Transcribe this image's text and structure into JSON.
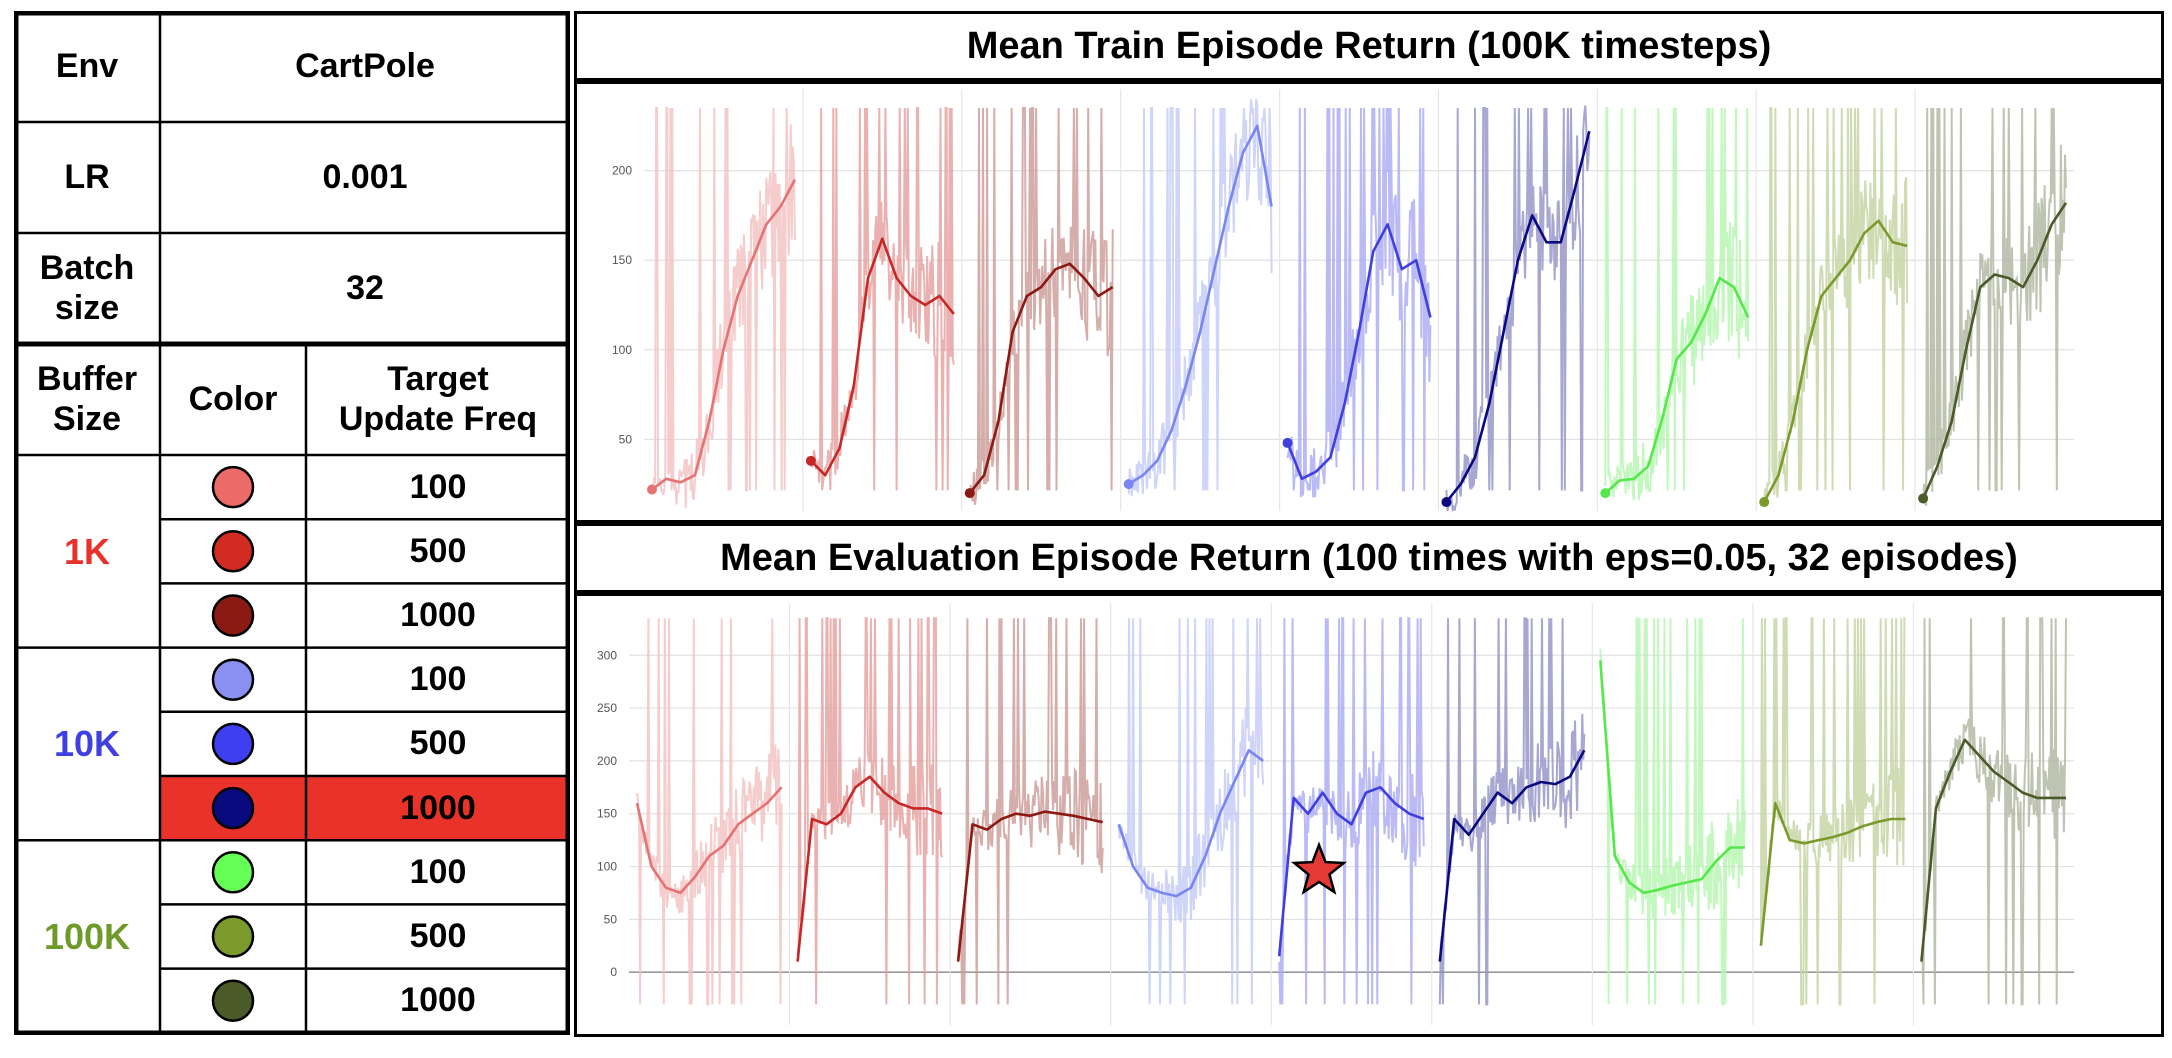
{
  "table": {
    "env_label": "Env",
    "env_value": "CartPole",
    "lr_label": "LR",
    "lr_value": "0.001",
    "batch_label": "Batch\nsize",
    "batch_value": "32",
    "header_buffer": "Buffer\nSize",
    "header_color": "Color",
    "header_target": "Target\nUpdate Freq",
    "groups": [
      {
        "buffer": "1K",
        "label_color": "#e8322a",
        "rows": [
          {
            "color": "#ec6b68",
            "freq": "100"
          },
          {
            "color": "#d22b22",
            "freq": "500"
          },
          {
            "color": "#8b1a14",
            "freq": "1000"
          }
        ]
      },
      {
        "buffer": "10K",
        "label_color": "#4040e0",
        "rows": [
          {
            "color": "#8a8ff2",
            "freq": "100"
          },
          {
            "color": "#3f3ff2",
            "freq": "500"
          },
          {
            "color": "#0a0a80",
            "freq": "1000"
          }
        ]
      },
      {
        "buffer": "100K",
        "label_color": "#6e9a2a",
        "rows": [
          {
            "color": "#66ff55",
            "freq": "100"
          },
          {
            "color": "#7a9a2c",
            "freq": "500"
          },
          {
            "color": "#4a5a28",
            "freq": "1000"
          }
        ]
      }
    ],
    "highlight_row_color": "#e8322a"
  },
  "chart_data": [
    {
      "type": "line",
      "title": "Mean Train Episode Return (100K timesteps)",
      "yticks": [
        50,
        100,
        150,
        200
      ],
      "ylim": [
        10,
        240
      ],
      "grid": true,
      "series": [
        {
          "color": "#e57373",
          "x": [
            0,
            0.1,
            0.2,
            0.3,
            0.4,
            0.5,
            0.6,
            0.7,
            0.8,
            0.9,
            1.0
          ],
          "y": [
            22,
            28,
            26,
            30,
            60,
            100,
            130,
            150,
            170,
            180,
            195
          ]
        },
        {
          "color": "#c62828",
          "x": [
            0,
            0.1,
            0.2,
            0.3,
            0.4,
            0.5,
            0.6,
            0.7,
            0.8,
            0.9,
            1.0
          ],
          "y": [
            38,
            30,
            45,
            80,
            140,
            162,
            140,
            130,
            125,
            130,
            120
          ]
        },
        {
          "color": "#8b1a14",
          "x": [
            0,
            0.1,
            0.2,
            0.3,
            0.4,
            0.5,
            0.6,
            0.7,
            0.8,
            0.9,
            1.0
          ],
          "y": [
            20,
            30,
            60,
            110,
            130,
            135,
            145,
            148,
            140,
            130,
            135
          ]
        },
        {
          "color": "#7986f0",
          "x": [
            0,
            0.1,
            0.2,
            0.3,
            0.4,
            0.5,
            0.6,
            0.7,
            0.8,
            0.9,
            1.0
          ],
          "y": [
            25,
            30,
            38,
            55,
            80,
            110,
            145,
            180,
            210,
            225,
            180
          ]
        },
        {
          "color": "#3f3fe0",
          "x": [
            0,
            0.1,
            0.2,
            0.3,
            0.4,
            0.5,
            0.6,
            0.7,
            0.8,
            0.9,
            1.0
          ],
          "y": [
            48,
            28,
            32,
            40,
            70,
            110,
            155,
            170,
            145,
            150,
            118
          ]
        },
        {
          "color": "#0a0a80",
          "x": [
            0,
            0.1,
            0.2,
            0.3,
            0.4,
            0.5,
            0.6,
            0.7,
            0.8,
            0.9,
            1.0
          ],
          "y": [
            15,
            25,
            40,
            70,
            110,
            150,
            175,
            160,
            160,
            190,
            222
          ]
        },
        {
          "color": "#55e84a",
          "x": [
            0,
            0.1,
            0.2,
            0.3,
            0.4,
            0.5,
            0.6,
            0.7,
            0.8,
            0.9,
            1.0
          ],
          "y": [
            20,
            27,
            28,
            35,
            62,
            95,
            104,
            120,
            140,
            135,
            118
          ]
        },
        {
          "color": "#7a9a2c",
          "x": [
            0,
            0.1,
            0.2,
            0.3,
            0.4,
            0.5,
            0.6,
            0.7,
            0.8,
            0.9,
            1.0
          ],
          "y": [
            15,
            30,
            60,
            100,
            130,
            140,
            150,
            165,
            172,
            160,
            158
          ]
        },
        {
          "color": "#4a5a28",
          "x": [
            0,
            0.1,
            0.2,
            0.3,
            0.4,
            0.5,
            0.6,
            0.7,
            0.8,
            0.9,
            1.0
          ],
          "y": [
            17,
            35,
            60,
            100,
            135,
            142,
            140,
            135,
            150,
            170,
            182
          ]
        }
      ]
    },
    {
      "type": "line",
      "title": "Mean Evaluation Episode Return (100 times with eps=0.05, 32 episodes)",
      "yticks": [
        0,
        50,
        100,
        150,
        200,
        250,
        300
      ],
      "ylim": [
        -50,
        340
      ],
      "grid": true,
      "series": [
        {
          "color": "#e57373",
          "x": [
            0,
            0.1,
            0.2,
            0.3,
            0.4,
            0.5,
            0.6,
            0.7,
            0.8,
            0.9,
            1.0
          ],
          "y": [
            160,
            100,
            80,
            75,
            90,
            110,
            120,
            140,
            150,
            160,
            175
          ]
        },
        {
          "color": "#c62828",
          "x": [
            0,
            0.1,
            0.2,
            0.3,
            0.4,
            0.5,
            0.6,
            0.7,
            0.8,
            0.9,
            1.0
          ],
          "y": [
            10,
            145,
            140,
            150,
            175,
            185,
            170,
            160,
            155,
            155,
            150
          ]
        },
        {
          "color": "#8b1a14",
          "x": [
            0,
            0.1,
            0.2,
            0.3,
            0.4,
            0.5,
            0.6,
            0.7,
            0.8,
            0.9,
            1.0
          ],
          "y": [
            10,
            140,
            135,
            145,
            150,
            148,
            152,
            150,
            148,
            145,
            142
          ]
        },
        {
          "color": "#7986f0",
          "x": [
            0,
            0.1,
            0.2,
            0.3,
            0.4,
            0.5,
            0.6,
            0.7,
            0.8,
            0.9,
            1.0
          ],
          "y": [
            140,
            100,
            80,
            75,
            72,
            80,
            110,
            150,
            180,
            210,
            200
          ]
        },
        {
          "color": "#3f3fe0",
          "x": [
            0,
            0.1,
            0.2,
            0.3,
            0.4,
            0.5,
            0.6,
            0.7,
            0.8,
            0.9,
            1.0
          ],
          "y": [
            15,
            165,
            150,
            170,
            150,
            140,
            170,
            175,
            160,
            150,
            145
          ]
        },
        {
          "color": "#0a0a80",
          "x": [
            0,
            0.1,
            0.2,
            0.3,
            0.4,
            0.5,
            0.6,
            0.7,
            0.8,
            0.9,
            1.0
          ],
          "y": [
            10,
            145,
            130,
            150,
            170,
            160,
            175,
            180,
            178,
            185,
            210
          ]
        },
        {
          "color": "#55e84a",
          "x": [
            0,
            0.1,
            0.2,
            0.3,
            0.4,
            0.5,
            0.6,
            0.7,
            0.8,
            0.9,
            1.0
          ],
          "y": [
            295,
            110,
            85,
            75,
            78,
            82,
            85,
            88,
            105,
            118,
            118
          ]
        },
        {
          "color": "#7a9a2c",
          "x": [
            0,
            0.1,
            0.2,
            0.3,
            0.4,
            0.5,
            0.6,
            0.7,
            0.8,
            0.9,
            1.0
          ],
          "y": [
            25,
            160,
            125,
            122,
            125,
            128,
            132,
            138,
            142,
            145,
            145
          ]
        },
        {
          "color": "#4a5a28",
          "x": [
            0,
            0.1,
            0.2,
            0.3,
            0.4,
            0.5,
            0.6,
            0.7,
            0.8,
            0.9,
            1.0
          ],
          "y": [
            10,
            155,
            190,
            220,
            205,
            190,
            180,
            170,
            165,
            165,
            165
          ]
        }
      ]
    }
  ]
}
